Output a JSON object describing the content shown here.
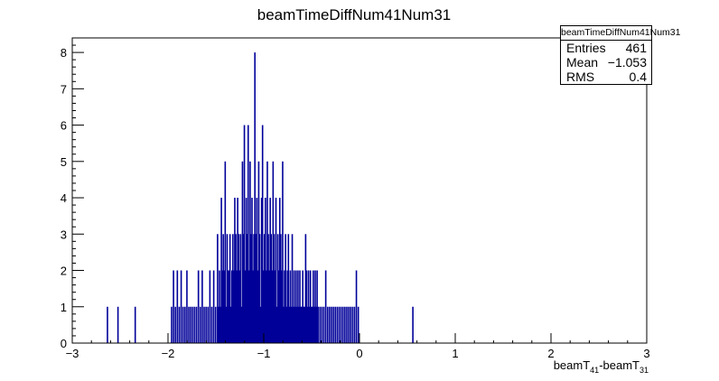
{
  "chart_data": {
    "type": "bar",
    "title": "beamTimeDiffNum41Num31",
    "xlabel": {
      "base1": "beamT",
      "sub1": "41",
      "sep": "-beamT",
      "sub2": "31"
    },
    "ylabel": "",
    "xlim": [
      -3,
      3
    ],
    "ylim": [
      0,
      8.4
    ],
    "x_ticks": [
      "-3",
      "-2",
      "-1",
      "0",
      "1",
      "2",
      "3"
    ],
    "y_ticks": [
      "0",
      "1",
      "2",
      "3",
      "4",
      "5",
      "6",
      "7",
      "8"
    ],
    "bin_width": 0.006,
    "color": "#000099",
    "grid": false,
    "legend": "none",
    "bins": [
      [
        -2.64,
        1
      ],
      [
        -2.53,
        1
      ],
      [
        -2.35,
        1
      ],
      [
        -1.97,
        1
      ],
      [
        -1.95,
        2
      ],
      [
        -1.93,
        1
      ],
      [
        -1.91,
        2
      ],
      [
        -1.89,
        1
      ],
      [
        -1.87,
        2
      ],
      [
        -1.85,
        1
      ],
      [
        -1.83,
        1
      ],
      [
        -1.81,
        2
      ],
      [
        -1.79,
        1
      ],
      [
        -1.77,
        1
      ],
      [
        -1.75,
        1
      ],
      [
        -1.73,
        1
      ],
      [
        -1.71,
        1
      ],
      [
        -1.69,
        2
      ],
      [
        -1.67,
        1
      ],
      [
        -1.65,
        2
      ],
      [
        -1.63,
        1
      ],
      [
        -1.61,
        1
      ],
      [
        -1.59,
        1
      ],
      [
        -1.57,
        2
      ],
      [
        -1.55,
        1
      ],
      [
        -1.53,
        2
      ],
      [
        -1.51,
        1
      ],
      [
        -1.49,
        3
      ],
      [
        -1.48,
        1
      ],
      [
        -1.47,
        2
      ],
      [
        -1.46,
        1
      ],
      [
        -1.45,
        4
      ],
      [
        -1.44,
        2
      ],
      [
        -1.43,
        3
      ],
      [
        -1.42,
        2
      ],
      [
        -1.41,
        5
      ],
      [
        -1.4,
        1
      ],
      [
        -1.39,
        3
      ],
      [
        -1.38,
        2
      ],
      [
        -1.37,
        2
      ],
      [
        -1.36,
        3
      ],
      [
        -1.35,
        1
      ],
      [
        -1.34,
        2
      ],
      [
        -1.33,
        3
      ],
      [
        -1.32,
        2
      ],
      [
        -1.31,
        4
      ],
      [
        -1.3,
        3
      ],
      [
        -1.29,
        2
      ],
      [
        -1.28,
        4
      ],
      [
        -1.27,
        3
      ],
      [
        -1.26,
        2
      ],
      [
        -1.25,
        3
      ],
      [
        -1.24,
        1
      ],
      [
        -1.23,
        5
      ],
      [
        -1.22,
        3
      ],
      [
        -1.21,
        6
      ],
      [
        -1.2,
        2
      ],
      [
        -1.19,
        4
      ],
      [
        -1.18,
        3
      ],
      [
        -1.17,
        6
      ],
      [
        -1.16,
        2
      ],
      [
        -1.15,
        5
      ],
      [
        -1.14,
        3
      ],
      [
        -1.13,
        4
      ],
      [
        -1.12,
        2
      ],
      [
        -1.11,
        3
      ],
      [
        -1.1,
        8
      ],
      [
        -1.09,
        3
      ],
      [
        -1.08,
        4
      ],
      [
        -1.07,
        2
      ],
      [
        -1.06,
        5
      ],
      [
        -1.05,
        3
      ],
      [
        -1.04,
        1
      ],
      [
        -1.03,
        4
      ],
      [
        -1.02,
        6
      ],
      [
        -1.01,
        2
      ],
      [
        -1.0,
        3
      ],
      [
        -0.99,
        4
      ],
      [
        -0.98,
        2
      ],
      [
        -0.97,
        5
      ],
      [
        -0.96,
        3
      ],
      [
        -0.95,
        2
      ],
      [
        -0.94,
        4
      ],
      [
        -0.93,
        3
      ],
      [
        -0.92,
        2
      ],
      [
        -0.91,
        5
      ],
      [
        -0.9,
        3
      ],
      [
        -0.89,
        2
      ],
      [
        -0.88,
        4
      ],
      [
        -0.87,
        1
      ],
      [
        -0.86,
        3
      ],
      [
        -0.85,
        2
      ],
      [
        -0.84,
        4
      ],
      [
        -0.83,
        3
      ],
      [
        -0.82,
        2
      ],
      [
        -0.81,
        5
      ],
      [
        -0.8,
        1
      ],
      [
        -0.79,
        2
      ],
      [
        -0.78,
        3
      ],
      [
        -0.77,
        1
      ],
      [
        -0.76,
        2
      ],
      [
        -0.75,
        3
      ],
      [
        -0.74,
        1
      ],
      [
        -0.73,
        2
      ],
      [
        -0.72,
        1
      ],
      [
        -0.71,
        3
      ],
      [
        -0.7,
        1
      ],
      [
        -0.69,
        2
      ],
      [
        -0.68,
        1
      ],
      [
        -0.67,
        2
      ],
      [
        -0.66,
        1
      ],
      [
        -0.65,
        2
      ],
      [
        -0.64,
        1
      ],
      [
        -0.63,
        2
      ],
      [
        -0.62,
        1
      ],
      [
        -0.61,
        1
      ],
      [
        -0.6,
        2
      ],
      [
        -0.59,
        1
      ],
      [
        -0.58,
        1
      ],
      [
        -0.57,
        3
      ],
      [
        -0.56,
        2
      ],
      [
        -0.55,
        1
      ],
      [
        -0.54,
        2
      ],
      [
        -0.53,
        1
      ],
      [
        -0.52,
        2
      ],
      [
        -0.51,
        1
      ],
      [
        -0.5,
        1
      ],
      [
        -0.49,
        2
      ],
      [
        -0.48,
        1
      ],
      [
        -0.47,
        2
      ],
      [
        -0.46,
        1
      ],
      [
        -0.45,
        2
      ],
      [
        -0.44,
        1
      ],
      [
        -0.42,
        1
      ],
      [
        -0.4,
        1
      ],
      [
        -0.38,
        1
      ],
      [
        -0.36,
        2
      ],
      [
        -0.34,
        1
      ],
      [
        -0.32,
        1
      ],
      [
        -0.3,
        1
      ],
      [
        -0.28,
        1
      ],
      [
        -0.26,
        1
      ],
      [
        -0.24,
        1
      ],
      [
        -0.22,
        1
      ],
      [
        -0.2,
        1
      ],
      [
        -0.18,
        1
      ],
      [
        -0.16,
        1
      ],
      [
        -0.14,
        1
      ],
      [
        -0.12,
        1
      ],
      [
        -0.1,
        1
      ],
      [
        -0.08,
        1
      ],
      [
        -0.06,
        1
      ],
      [
        -0.04,
        2
      ],
      [
        -0.02,
        1
      ],
      [
        0.55,
        1
      ]
    ]
  },
  "stats_box": {
    "title": "beamTimeDiffNum41Num31",
    "rows": [
      {
        "label": "Entries",
        "value": "461"
      },
      {
        "label": "Mean",
        "value": "−1.053"
      },
      {
        "label": "RMS",
        "value": "0.4"
      }
    ]
  }
}
